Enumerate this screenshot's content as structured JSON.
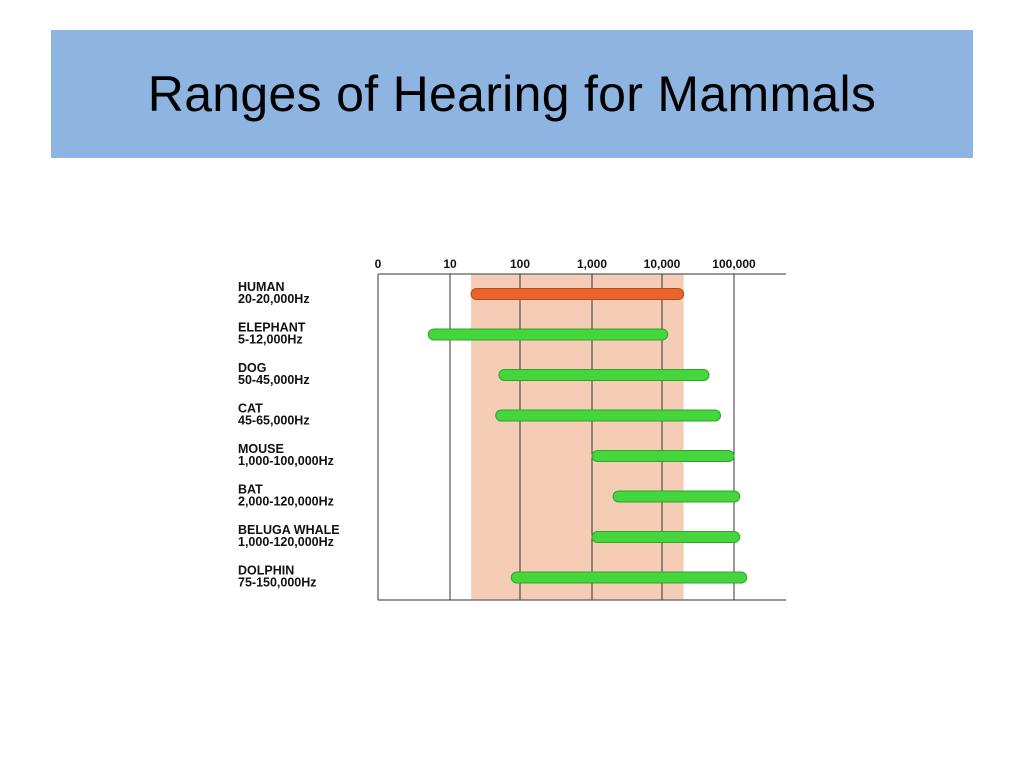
{
  "slide": {
    "title": "Ranges of Hearing for Mammals"
  },
  "colors": {
    "title_background": "#8eb4e2",
    "human_band": "#f5cdb6",
    "human_bar": "#e8642a",
    "animal_bar": "#44d63c",
    "gridline": "#333333"
  },
  "chart_data": {
    "type": "bar",
    "orientation": "horizontal-range",
    "title": "",
    "xlabel": "",
    "ylabel": "",
    "x_scale": "log",
    "x_ticks": [
      "0",
      "10",
      "100",
      "1,000",
      "10,000",
      "100,000"
    ],
    "x_tick_values": [
      1,
      10,
      100,
      1000,
      10000,
      100000
    ],
    "xlim": [
      1,
      300000
    ],
    "highlight_band": {
      "from": 20,
      "to": 20000
    },
    "series": [
      {
        "name": "HUMAN",
        "label": "20-20,000Hz",
        "min": 20,
        "max": 20000,
        "color": "#e8642a"
      },
      {
        "name": "ELEPHANT",
        "label": "5-12,000Hz",
        "min": 5,
        "max": 12000,
        "color": "#44d63c"
      },
      {
        "name": "DOG",
        "label": "50-45,000Hz",
        "min": 50,
        "max": 45000,
        "color": "#44d63c"
      },
      {
        "name": "CAT",
        "label": "45-65,000Hz",
        "min": 45,
        "max": 65000,
        "color": "#44d63c"
      },
      {
        "name": "MOUSE",
        "label": "1,000-100,000Hz",
        "min": 1000,
        "max": 100000,
        "color": "#44d63c"
      },
      {
        "name": "BAT",
        "label": "2,000-120,000Hz",
        "min": 2000,
        "max": 120000,
        "color": "#44d63c"
      },
      {
        "name": "BELUGA WHALE",
        "label": "1,000-120,000Hz",
        "min": 1000,
        "max": 120000,
        "color": "#44d63c"
      },
      {
        "name": "DOLPHIN",
        "label": "75-150,000Hz",
        "min": 75,
        "max": 150000,
        "color": "#44d63c"
      }
    ]
  }
}
